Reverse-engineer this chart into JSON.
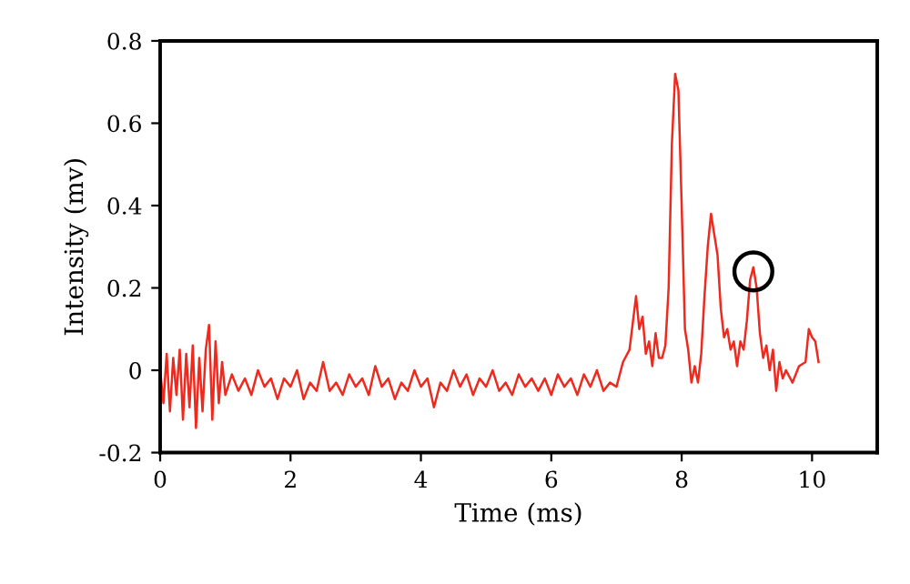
{
  "chart_data": {
    "type": "line",
    "xlabel": "Time (ms)",
    "ylabel": "Intensity (mv)",
    "xlim": [
      0,
      11
    ],
    "ylim": [
      -0.2,
      0.8
    ],
    "xticks": [
      0,
      2,
      4,
      6,
      8,
      10
    ],
    "yticks": [
      -0.2,
      0,
      0.2,
      0.4,
      0.6,
      0.8
    ],
    "grid": false,
    "legend": false,
    "marker": "none",
    "line_style": "solid",
    "series": [
      {
        "color": "#ee2a1f",
        "x": [
          0,
          0.05,
          0.1,
          0.15,
          0.2,
          0.25,
          0.3,
          0.35,
          0.4,
          0.45,
          0.5,
          0.55,
          0.6,
          0.65,
          0.7,
          0.75,
          0.8,
          0.85,
          0.9,
          0.95,
          1.0,
          1.1,
          1.2,
          1.3,
          1.4,
          1.5,
          1.6,
          1.7,
          1.8,
          1.9,
          2.0,
          2.1,
          2.2,
          2.3,
          2.4,
          2.5,
          2.6,
          2.7,
          2.8,
          2.9,
          3.0,
          3.1,
          3.2,
          3.3,
          3.4,
          3.5,
          3.6,
          3.7,
          3.8,
          3.9,
          4.0,
          4.1,
          4.2,
          4.3,
          4.4,
          4.5,
          4.6,
          4.7,
          4.8,
          4.9,
          5.0,
          5.1,
          5.2,
          5.3,
          5.4,
          5.5,
          5.6,
          5.7,
          5.8,
          5.9,
          6.0,
          6.1,
          6.2,
          6.3,
          6.4,
          6.5,
          6.6,
          6.7,
          6.8,
          6.9,
          7.0,
          7.1,
          7.2,
          7.3,
          7.35,
          7.4,
          7.45,
          7.5,
          7.55,
          7.6,
          7.65,
          7.7,
          7.75,
          7.8,
          7.85,
          7.9,
          7.95,
          8.0,
          8.05,
          8.1,
          8.15,
          8.2,
          8.25,
          8.3,
          8.35,
          8.4,
          8.45,
          8.5,
          8.55,
          8.6,
          8.65,
          8.7,
          8.75,
          8.8,
          8.85,
          8.9,
          8.95,
          9.0,
          9.05,
          9.1,
          9.15,
          9.2,
          9.25,
          9.3,
          9.35,
          9.4,
          9.45,
          9.5,
          9.55,
          9.6,
          9.7,
          9.8,
          9.9,
          9.95,
          10.0,
          10.05,
          10.1
        ],
        "values": [
          0.0,
          -0.08,
          0.04,
          -0.1,
          0.03,
          -0.06,
          0.05,
          -0.12,
          0.04,
          -0.09,
          0.06,
          -0.14,
          0.03,
          -0.1,
          0.05,
          0.11,
          -0.12,
          0.07,
          -0.08,
          0.02,
          -0.06,
          -0.01,
          -0.05,
          -0.02,
          -0.06,
          0.0,
          -0.04,
          -0.02,
          -0.07,
          -0.02,
          -0.04,
          0.0,
          -0.07,
          -0.03,
          -0.05,
          0.02,
          -0.05,
          -0.03,
          -0.06,
          -0.01,
          -0.04,
          -0.02,
          -0.06,
          0.01,
          -0.04,
          -0.02,
          -0.07,
          -0.03,
          -0.05,
          0.0,
          -0.04,
          -0.02,
          -0.09,
          -0.03,
          -0.05,
          0.0,
          -0.04,
          -0.01,
          -0.06,
          -0.02,
          -0.04,
          0.0,
          -0.05,
          -0.03,
          -0.06,
          -0.01,
          -0.04,
          -0.02,
          -0.05,
          -0.02,
          -0.06,
          -0.01,
          -0.04,
          -0.02,
          -0.06,
          -0.01,
          -0.04,
          0.0,
          -0.05,
          -0.03,
          -0.04,
          0.02,
          0.05,
          0.18,
          0.1,
          0.13,
          0.04,
          0.07,
          0.01,
          0.09,
          0.03,
          0.03,
          0.06,
          0.2,
          0.55,
          0.72,
          0.68,
          0.4,
          0.1,
          0.05,
          -0.03,
          0.01,
          -0.03,
          0.04,
          0.18,
          0.3,
          0.38,
          0.33,
          0.28,
          0.15,
          0.08,
          0.1,
          0.05,
          0.07,
          0.01,
          0.07,
          0.05,
          0.12,
          0.22,
          0.25,
          0.2,
          0.09,
          0.03,
          0.06,
          0.0,
          0.05,
          -0.05,
          0.02,
          -0.02,
          0.0,
          -0.03,
          0.01,
          0.02,
          0.1,
          0.08,
          0.07,
          0.02
        ]
      }
    ]
  }
}
